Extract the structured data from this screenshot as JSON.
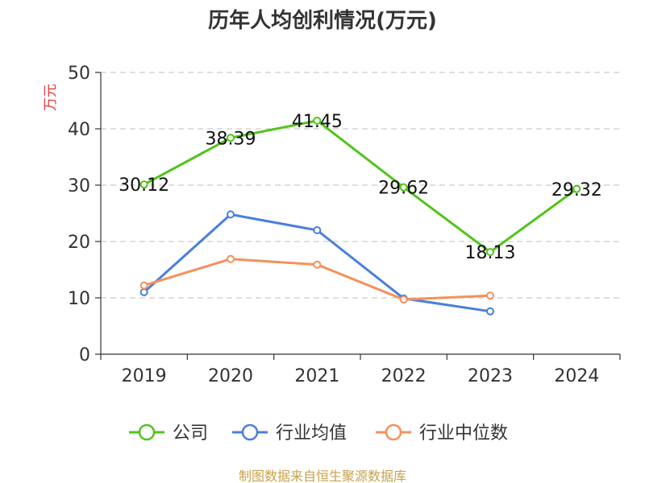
{
  "chart_data": {
    "type": "line",
    "title": "历年人均创利情况(万元)",
    "ylabel": "万元",
    "xlabel": "",
    "categories": [
      "2019",
      "2020",
      "2021",
      "2022",
      "2023",
      "2024"
    ],
    "ylim": [
      0,
      50
    ],
    "yticks": [
      0,
      10,
      20,
      30,
      40,
      50
    ],
    "grid": true,
    "grid_style": "dashed horizontal",
    "legend_position": "bottom",
    "series": [
      {
        "name": "公司",
        "color": "#52c41a",
        "values": [
          30.12,
          38.39,
          41.45,
          29.62,
          18.13,
          29.32
        ],
        "labels": [
          "30.12",
          "38.39",
          "41.45",
          "29.62",
          "18.13",
          "29.32"
        ]
      },
      {
        "name": "行业均值",
        "color": "#4a7fdb",
        "values": [
          11.0,
          24.8,
          22.0,
          9.9,
          7.6,
          null
        ]
      },
      {
        "name": "行业中位数",
        "color": "#f5905b",
        "values": [
          12.2,
          16.9,
          15.9,
          9.7,
          10.4,
          null
        ]
      }
    ]
  },
  "colors": {
    "unit_label": "#e03a3a",
    "source": "#c8a24a",
    "grid": "#cccccc",
    "axis": "#333333"
  },
  "source": "制图数据来自恒生聚源数据库"
}
